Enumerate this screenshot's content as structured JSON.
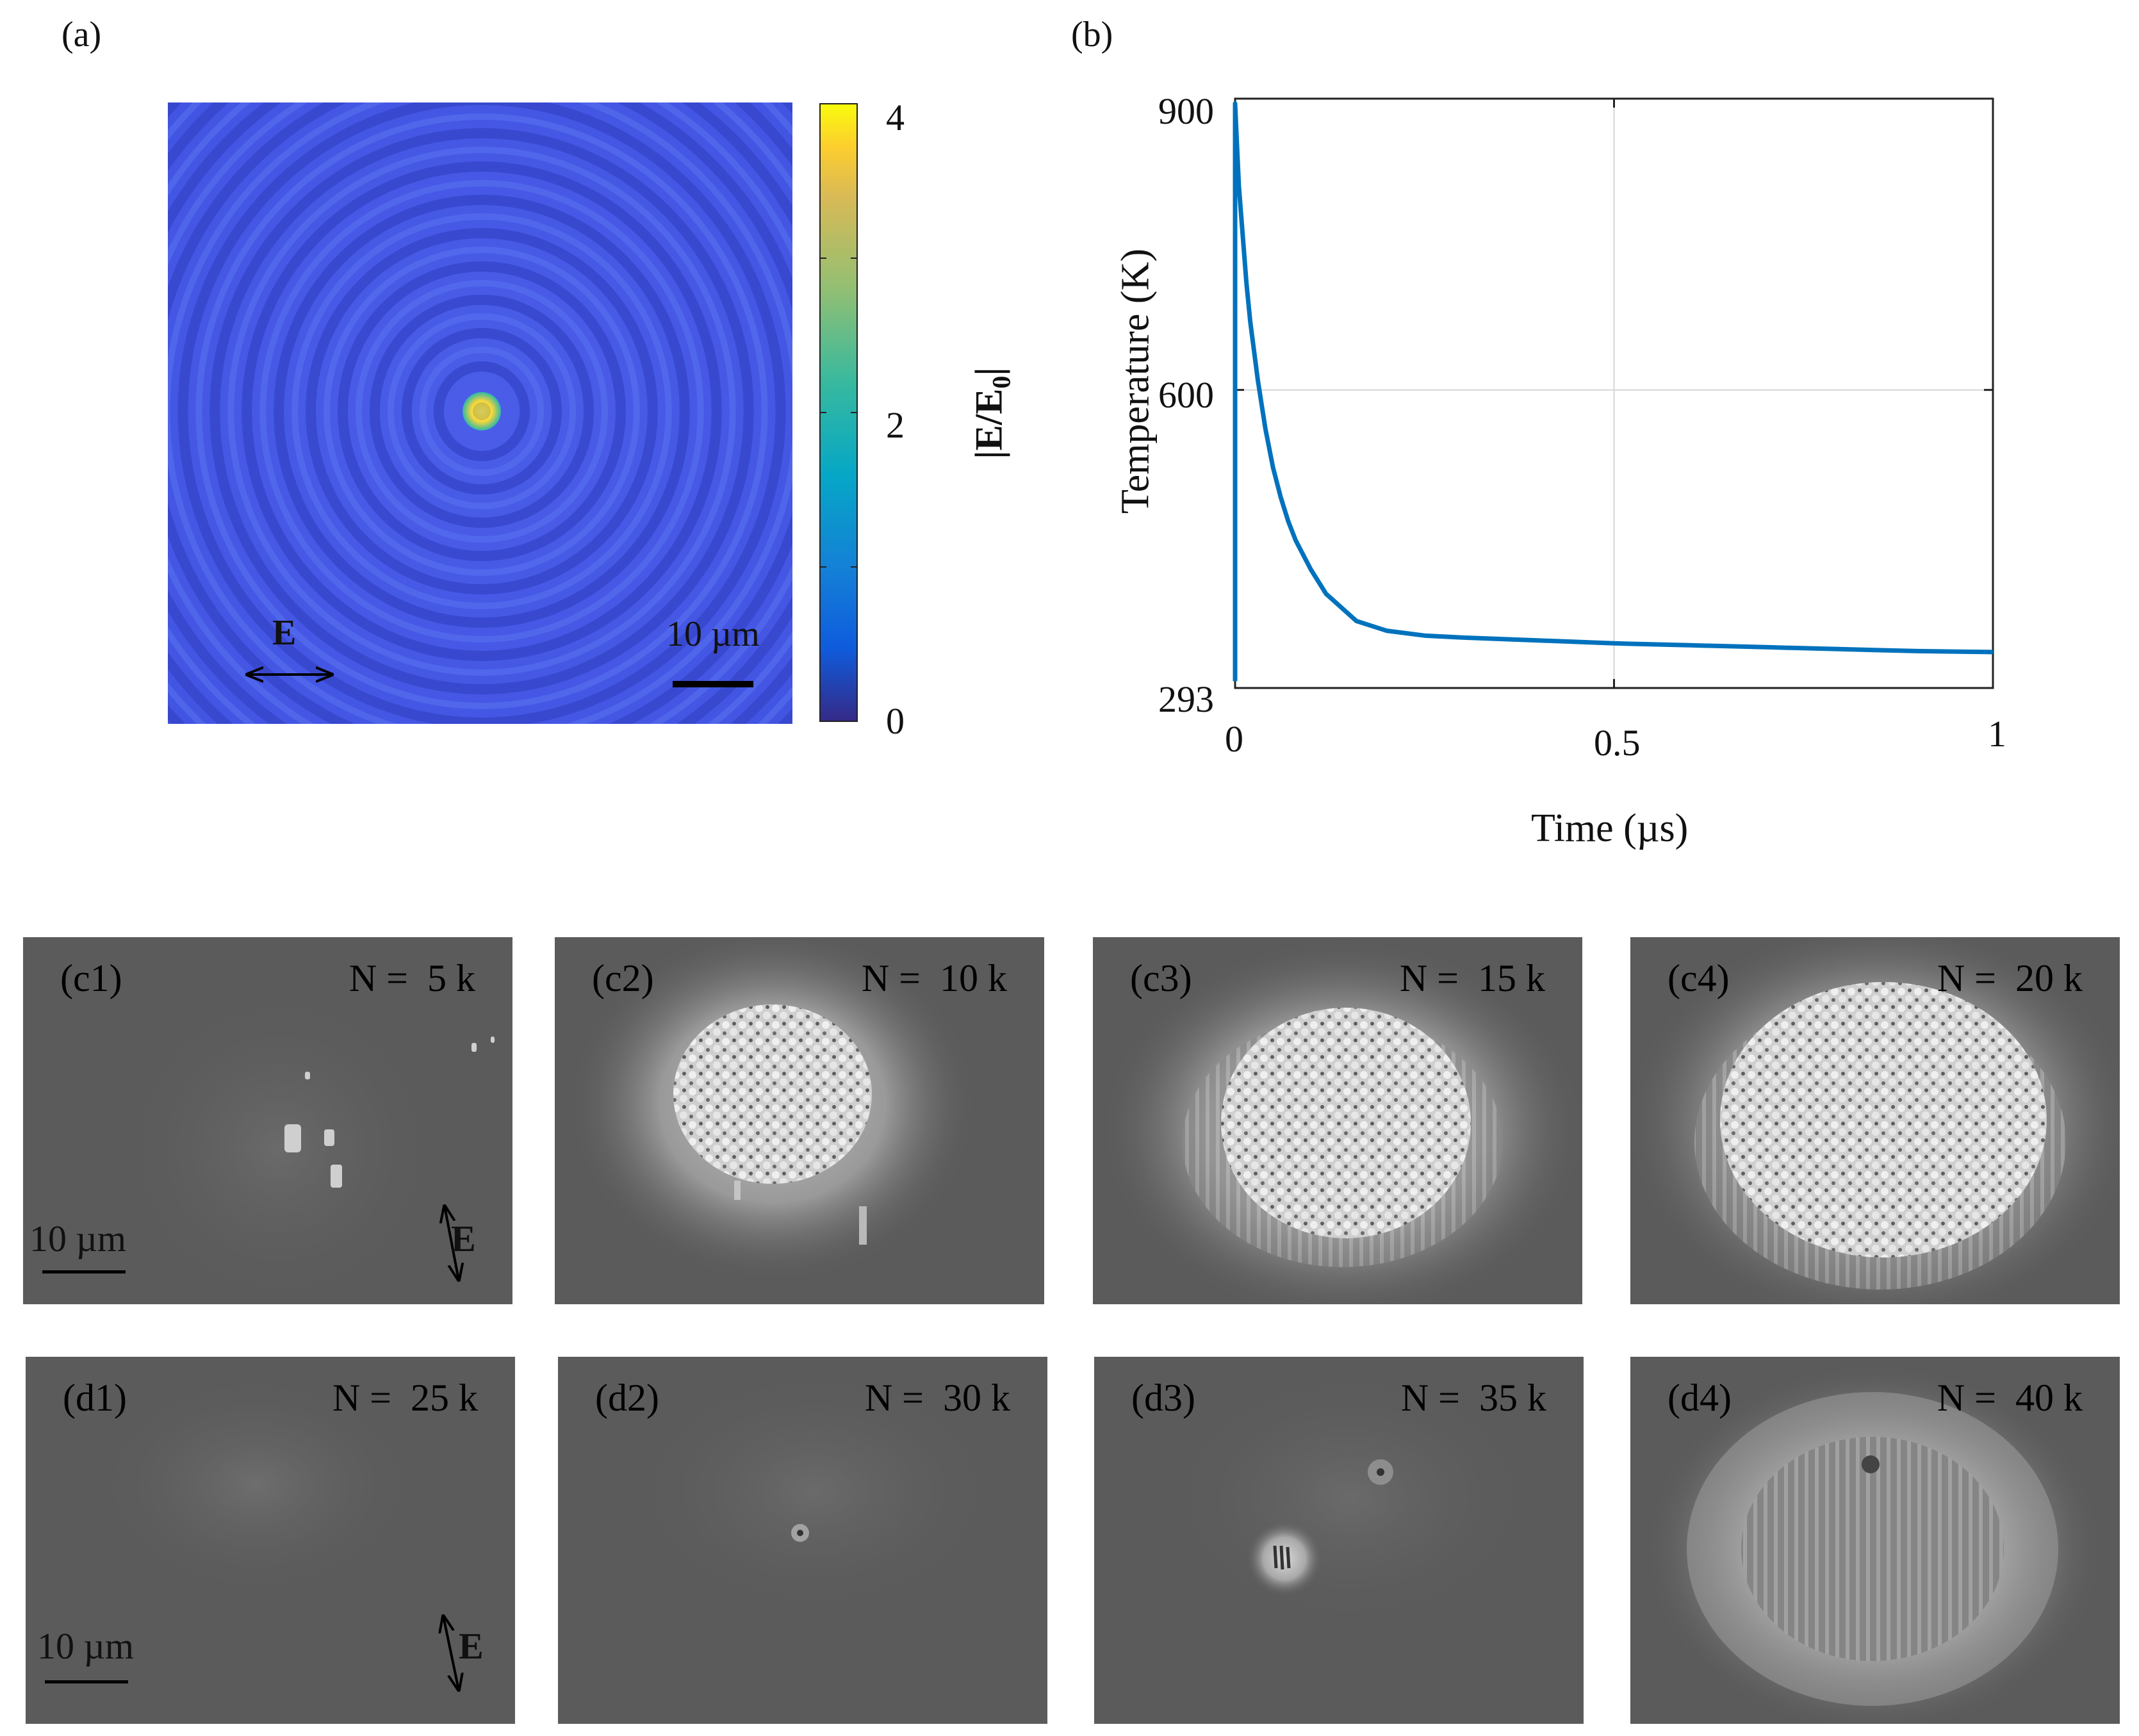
{
  "figure": {
    "panel_a": {
      "label": "(a)",
      "colorbar": {
        "label_main": "|E/E",
        "label_sub": "0",
        "label_end": "|",
        "ticks": [
          "4",
          "2",
          "0"
        ]
      },
      "scale_bar": "10 µm",
      "field_label": "E"
    },
    "panel_b": {
      "label": "(b)",
      "chart_data": {
        "type": "line",
        "title": "",
        "xlabel": "Time (µs)",
        "ylabel": "Temperature (K)",
        "xlim": [
          0,
          1
        ],
        "ylim": [
          293,
          900
        ],
        "x_ticks": [
          "0",
          "0.5",
          "1"
        ],
        "y_ticks": [
          "900",
          "600",
          "293"
        ],
        "y_tick_values": [
          900,
          600,
          293
        ],
        "grid": true,
        "series": [
          {
            "name": "Temperature",
            "color": "#0072BD",
            "x": [
              0,
              0,
              0.002,
              0.005,
              0.01,
              0.015,
              0.02,
              0.03,
              0.04,
              0.05,
              0.06,
              0.07,
              0.08,
              0.1,
              0.12,
              0.16,
              0.2,
              0.25,
              0.3,
              0.4,
              0.5,
              0.6,
              0.7,
              0.8,
              0.9,
              1.0
            ],
            "y": [
              300,
              895,
              860,
              810,
              760,
              710,
              670,
              610,
              560,
              520,
              490,
              465,
              445,
              415,
              390,
              362,
              352,
              347,
              345,
              342,
              339,
              337,
              335,
              333,
              331,
              330
            ]
          }
        ]
      }
    },
    "sem_rows": [
      {
        "row": "c",
        "panels": [
          {
            "label": "(c1)",
            "count": "N =  5 k"
          },
          {
            "label": "(c2)",
            "count": "N =  10 k"
          },
          {
            "label": "(c3)",
            "count": "N =  15 k"
          },
          {
            "label": "(c4)",
            "count": "N =  20 k"
          }
        ],
        "scale_bar": "10 µm",
        "field_label": "E"
      },
      {
        "row": "d",
        "panels": [
          {
            "label": "(d1)",
            "count": "N =  25 k"
          },
          {
            "label": "(d2)",
            "count": "N =  30 k"
          },
          {
            "label": "(d3)",
            "count": "N =  35 k"
          },
          {
            "label": "(d4)",
            "count": "N =  40 k"
          }
        ],
        "scale_bar": "10 µm",
        "field_label": "E"
      }
    ]
  }
}
